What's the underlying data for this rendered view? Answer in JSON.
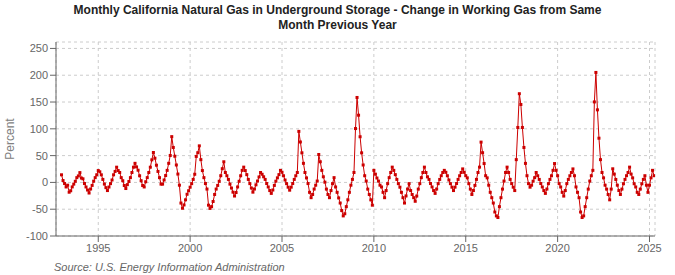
{
  "chart_data": {
    "type": "line",
    "title": "Monthly California Natural Gas in Underground Storage - Change in Working Gas from Same\nMonth Previous Year",
    "ylabel": "Percent",
    "annotations": [
      "Source: U.S. Energy Information Administration"
    ],
    "color": "#cc0000",
    "marker": "square",
    "line_style": "solid",
    "grid": true,
    "xlim": [
      1992.7,
      2025.3
    ],
    "xticks": [
      1995,
      2000,
      2005,
      2010,
      2015,
      2020,
      2025
    ],
    "ylim": [
      -100,
      262
    ],
    "yticks": [
      -100,
      -50,
      0,
      50,
      100,
      150,
      200,
      250
    ],
    "x": [
      1993,
      1993.0833,
      1993.1667,
      1993.25,
      1993.3333,
      1993.4167,
      1993.5,
      1993.5833,
      1993.6667,
      1993.75,
      1993.8333,
      1993.9167,
      1994,
      1994.0833,
      1994.1667,
      1994.25,
      1994.3333,
      1994.4167,
      1994.5,
      1994.5833,
      1994.6667,
      1994.75,
      1994.8333,
      1994.9167,
      1995,
      1995.0833,
      1995.1667,
      1995.25,
      1995.3333,
      1995.4167,
      1995.5,
      1995.5833,
      1995.6667,
      1995.75,
      1995.8333,
      1995.9167,
      1996,
      1996.0833,
      1996.1667,
      1996.25,
      1996.3333,
      1996.4167,
      1996.5,
      1996.5833,
      1996.6667,
      1996.75,
      1996.8333,
      1996.9167,
      1997,
      1997.0833,
      1997.1667,
      1997.25,
      1997.3333,
      1997.4167,
      1997.5,
      1997.5833,
      1997.6667,
      1997.75,
      1997.8333,
      1997.9167,
      1998,
      1998.0833,
      1998.1667,
      1998.25,
      1998.3333,
      1998.4167,
      1998.5,
      1998.5833,
      1998.6667,
      1998.75,
      1998.8333,
      1998.9167,
      1999,
      1999.0833,
      1999.1667,
      1999.25,
      1999.3333,
      1999.4167,
      1999.5,
      1999.5833,
      1999.6667,
      1999.75,
      1999.8333,
      1999.9167,
      2000,
      2000.0833,
      2000.1667,
      2000.25,
      2000.3333,
      2000.4167,
      2000.5,
      2000.5833,
      2000.6667,
      2000.75,
      2000.8333,
      2000.9167,
      2001,
      2001.0833,
      2001.1667,
      2001.25,
      2001.3333,
      2001.4167,
      2001.5,
      2001.5833,
      2001.6667,
      2001.75,
      2001.8333,
      2001.9167,
      2002,
      2002.0833,
      2002.1667,
      2002.25,
      2002.3333,
      2002.4167,
      2002.5,
      2002.5833,
      2002.6667,
      2002.75,
      2002.8333,
      2002.9167,
      2003,
      2003.0833,
      2003.1667,
      2003.25,
      2003.3333,
      2003.4167,
      2003.5,
      2003.5833,
      2003.6667,
      2003.75,
      2003.8333,
      2003.9167,
      2004,
      2004.0833,
      2004.1667,
      2004.25,
      2004.3333,
      2004.4167,
      2004.5,
      2004.5833,
      2004.6667,
      2004.75,
      2004.8333,
      2004.9167,
      2005,
      2005.0833,
      2005.1667,
      2005.25,
      2005.3333,
      2005.4167,
      2005.5,
      2005.5833,
      2005.6667,
      2005.75,
      2005.8333,
      2005.9167,
      2006,
      2006.0833,
      2006.1667,
      2006.25,
      2006.3333,
      2006.4167,
      2006.5,
      2006.5833,
      2006.6667,
      2006.75,
      2006.8333,
      2006.9167,
      2007,
      2007.0833,
      2007.1667,
      2007.25,
      2007.3333,
      2007.4167,
      2007.5,
      2007.5833,
      2007.6667,
      2007.75,
      2007.8333,
      2007.9167,
      2008,
      2008.0833,
      2008.1667,
      2008.25,
      2008.3333,
      2008.4167,
      2008.5,
      2008.5833,
      2008.6667,
      2008.75,
      2008.8333,
      2008.9167,
      2009,
      2009.0833,
      2009.1667,
      2009.25,
      2009.3333,
      2009.4167,
      2009.5,
      2009.5833,
      2009.6667,
      2009.75,
      2009.8333,
      2009.9167,
      2010,
      2010.0833,
      2010.1667,
      2010.25,
      2010.3333,
      2010.4167,
      2010.5,
      2010.5833,
      2010.6667,
      2010.75,
      2010.8333,
      2010.9167,
      2011,
      2011.0833,
      2011.1667,
      2011.25,
      2011.3333,
      2011.4167,
      2011.5,
      2011.5833,
      2011.6667,
      2011.75,
      2011.8333,
      2011.9167,
      2012,
      2012.0833,
      2012.1667,
      2012.25,
      2012.3333,
      2012.4167,
      2012.5,
      2012.5833,
      2012.6667,
      2012.75,
      2012.8333,
      2012.9167,
      2013,
      2013.0833,
      2013.1667,
      2013.25,
      2013.3333,
      2013.4167,
      2013.5,
      2013.5833,
      2013.6667,
      2013.75,
      2013.8333,
      2013.9167,
      2014,
      2014.0833,
      2014.1667,
      2014.25,
      2014.3333,
      2014.4167,
      2014.5,
      2014.5833,
      2014.6667,
      2014.75,
      2014.8333,
      2014.9167,
      2015,
      2015.0833,
      2015.1667,
      2015.25,
      2015.3333,
      2015.4167,
      2015.5,
      2015.5833,
      2015.6667,
      2015.75,
      2015.8333,
      2015.9167,
      2016,
      2016.0833,
      2016.1667,
      2016.25,
      2016.3333,
      2016.4167,
      2016.5,
      2016.5833,
      2016.6667,
      2016.75,
      2016.8333,
      2016.9167,
      2017,
      2017.0833,
      2017.1667,
      2017.25,
      2017.3333,
      2017.4167,
      2017.5,
      2017.5833,
      2017.6667,
      2017.75,
      2017.8333,
      2017.9167,
      2018,
      2018.0833,
      2018.1667,
      2018.25,
      2018.3333,
      2018.4167,
      2018.5,
      2018.5833,
      2018.6667,
      2018.75,
      2018.8333,
      2018.9167,
      2019,
      2019.0833,
      2019.1667,
      2019.25,
      2019.3333,
      2019.4167,
      2019.5,
      2019.5833,
      2019.6667,
      2019.75,
      2019.8333,
      2019.9167,
      2020,
      2020.0833,
      2020.1667,
      2020.25,
      2020.3333,
      2020.4167,
      2020.5,
      2020.5833,
      2020.6667,
      2020.75,
      2020.8333,
      2020.9167,
      2021,
      2021.0833,
      2021.1667,
      2021.25,
      2021.3333,
      2021.4167,
      2021.5,
      2021.5833,
      2021.6667,
      2021.75,
      2021.8333,
      2021.9167,
      2022,
      2022.0833,
      2022.1667,
      2022.25,
      2022.3333,
      2022.4167,
      2022.5,
      2022.5833,
      2022.6667,
      2022.75,
      2022.8333,
      2022.9167,
      2023,
      2023.0833,
      2023.1667,
      2023.25,
      2023.3333,
      2023.4167,
      2023.5,
      2023.5833,
      2023.6667,
      2023.75,
      2023.8333,
      2023.9167,
      2024,
      2024.0833,
      2024.1667,
      2024.25,
      2024.3333,
      2024.4167,
      2024.5,
      2024.5833,
      2024.6667,
      2024.75,
      2024.8333,
      2024.9167,
      2025,
      2025.0833,
      2025.1667,
      2025.25
    ],
    "values": [
      14.2,
      3.5,
      -2.1,
      -8.5,
      -5.2,
      -18.3,
      -15.6,
      -8.4,
      -3.2,
      2.1,
      8.9,
      12.1,
      18.3,
      8.1,
      6.7,
      -2.1,
      -8.5,
      -14.2,
      -19.8,
      -12.3,
      -5.6,
      2.3,
      8.9,
      14.2,
      22.1,
      19.8,
      14.2,
      5.6,
      -3.1,
      -9.8,
      -15.2,
      -8.6,
      -2.3,
      4.5,
      14.2,
      20.5,
      28.4,
      22.1,
      18.5,
      8.9,
      3.2,
      -5.8,
      -11.4,
      -4.2,
      1.8,
      8.9,
      18.5,
      28.4,
      35.6,
      28.9,
      22.8,
      12.4,
      3.2,
      -5.8,
      -8.5,
      1.2,
      8.9,
      18.5,
      28.4,
      42.1,
      55.8,
      45.2,
      32.1,
      20.5,
      8.9,
      -3.2,
      -3.2,
      4.5,
      12.8,
      22.5,
      35.6,
      50.2,
      85.4,
      65.2,
      48.9,
      32.5,
      15.6,
      -5.2,
      -38.5,
      -48.2,
      -42.1,
      -32.5,
      -22.1,
      -15.6,
      -8.9,
      -2.3,
      5.6,
      15.2,
      48.5,
      55.4,
      68.2,
      42.5,
      22.1,
      8.9,
      -2.1,
      -12.4,
      -42.5,
      -48.5,
      -45.2,
      -35.6,
      -22.5,
      -12.4,
      -5.6,
      2.1,
      12.5,
      25.6,
      38.5,
      18.5,
      12.4,
      5.6,
      -3.2,
      -10.5,
      -18.2,
      -25.4,
      -18.9,
      -8.5,
      2.1,
      12.4,
      22.5,
      28.5,
      22.1,
      14.5,
      5.6,
      -2.3,
      -10.5,
      -18.2,
      -12.4,
      -4.5,
      2.5,
      10.2,
      18.5,
      15.2,
      10.5,
      5.6,
      -2.1,
      -8.5,
      -15.2,
      -20.5,
      -14.2,
      -5.6,
      2.3,
      8.5,
      14.5,
      22.5,
      18.9,
      12.4,
      4.5,
      -2.3,
      -8.9,
      -14.5,
      -8.9,
      -2.1,
      5.6,
      12.4,
      18.5,
      95.2,
      75.4,
      55.2,
      35.6,
      18.5,
      8.4,
      -2.1,
      -18.5,
      -28.5,
      -22.5,
      -12.4,
      -5.2,
      2.5,
      52.1,
      38.5,
      22.5,
      10.5,
      0.5,
      -12.5,
      -22.5,
      -28.5,
      -15.2,
      -2.3,
      8.9,
      -8.5,
      -18.5,
      -28.9,
      -38.5,
      -52.5,
      -62.5,
      -58.5,
      -45.2,
      -32.5,
      -18.5,
      -5.2,
      5.6,
      18.5,
      100.5,
      158.5,
      125.4,
      85.2,
      55.2,
      32.5,
      12.5,
      2.5,
      -12.5,
      -22.5,
      -32.5,
      -42.5,
      22.5,
      15.4,
      8.2,
      2.5,
      -5.2,
      -8.5,
      -18.5,
      -28.5,
      -15.2,
      -2.3,
      8.9,
      18.5,
      28.5,
      22.5,
      14.5,
      5.6,
      -2.3,
      -8.9,
      -18.5,
      -28.5,
      -38.5,
      -25.2,
      -12.4,
      -2.3,
      -15.2,
      -22.5,
      -28.5,
      -35.2,
      -25.5,
      -12.5,
      -2.3,
      8.9,
      18.5,
      28.5,
      18.5,
      10.4,
      5.6,
      -2.1,
      -8.5,
      -15.2,
      -20.5,
      -12.4,
      -2.3,
      5.6,
      12.4,
      18.5,
      22.5,
      18.9,
      12.4,
      4.5,
      -2.3,
      -8.9,
      -15.2,
      -8.9,
      -2.1,
      5.6,
      12.4,
      18.5,
      25.2,
      18.9,
      12.5,
      8.5,
      -2.3,
      -12.5,
      -22.5,
      -15.2,
      -5.6,
      5.6,
      18.5,
      28.5,
      75.2,
      55.4,
      35.2,
      12.5,
      8.5,
      -5.2,
      -18.5,
      -28.5,
      -38.5,
      -55.2,
      -62.5,
      -65.5,
      -45.2,
      -28.5,
      -12.5,
      2.5,
      18.5,
      28.5,
      18.5,
      5.6,
      -2.3,
      -8.9,
      -15.2,
      42.5,
      102.5,
      165.5,
      145.4,
      102.5,
      65.2,
      35.5,
      12.5,
      -2.3,
      -8.9,
      -5.2,
      2.3,
      8.9,
      18.5,
      12.4,
      5.6,
      -2.1,
      -8.5,
      -15.2,
      -20.5,
      -12.4,
      -2.3,
      5.6,
      12.4,
      22.5,
      35.2,
      22.5,
      12.5,
      -2.3,
      -8.5,
      -18.5,
      -25.5,
      -15.2,
      -2.3,
      5.6,
      12.4,
      18.5,
      25.2,
      12.5,
      -8.5,
      -18.5,
      -28.5,
      -55.2,
      -65.5,
      -62.5,
      -45.2,
      -28.5,
      -12.5,
      2.5,
      12.5,
      22.5,
      150.2,
      205.2,
      135.4,
      82.5,
      42.5,
      18.5,
      8.5,
      -5.2,
      -12.5,
      -22.5,
      -32.5,
      -12.5,
      25.4,
      15.5,
      5.5,
      -5.2,
      -15.2,
      -22.5,
      -12.5,
      -2.5,
      5.6,
      12.5,
      18.5,
      28.5,
      15.5,
      8.5,
      -2.5,
      -8.5,
      -18.5,
      -22.5,
      -12.5,
      -2.5,
      5.6,
      12.5,
      -5.2,
      -18.5,
      -5.2,
      8.5,
      22.5,
      12.5
    ]
  }
}
